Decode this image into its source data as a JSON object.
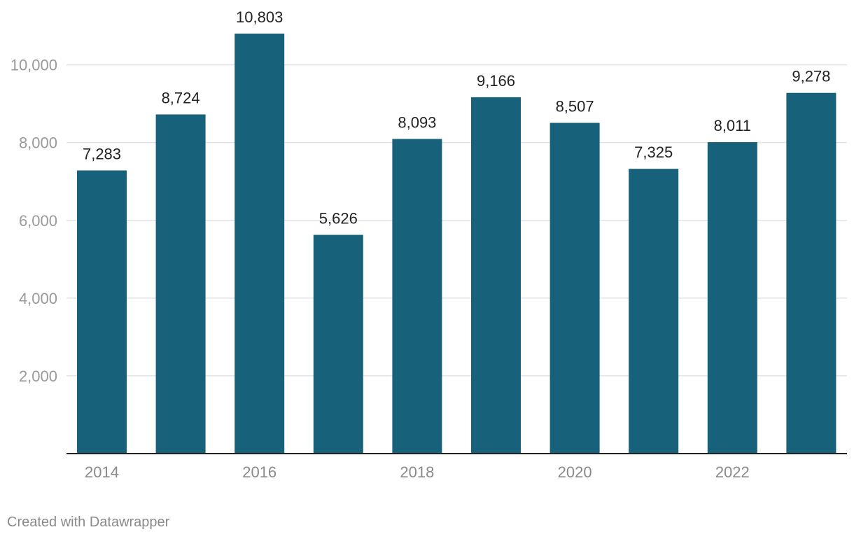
{
  "chart_data": {
    "type": "bar",
    "categories": [
      "2014",
      "2015",
      "2016",
      "2017",
      "2018",
      "2019",
      "2020",
      "2021",
      "2022",
      "2023"
    ],
    "values": [
      7283,
      8724,
      10803,
      5626,
      8093,
      9166,
      8507,
      7325,
      8011,
      9278
    ],
    "value_labels": [
      "7,283",
      "8,724",
      "10,803",
      "5,626",
      "8,093",
      "9,166",
      "8,507",
      "7,325",
      "8,011",
      "9,278"
    ],
    "x_tick_labels": [
      "2014",
      "",
      "2016",
      "",
      "2018",
      "",
      "2020",
      "",
      "2022",
      ""
    ],
    "y_ticks": [
      2000,
      4000,
      6000,
      8000,
      10000
    ],
    "y_tick_labels": [
      "2,000",
      "4,000",
      "6,000",
      "8,000",
      "10,000"
    ],
    "ylim": [
      0,
      10803
    ],
    "grid": true,
    "title": "",
    "xlabel": "",
    "ylabel": "",
    "bar_color": "#18617a",
    "grid_color": "#e3e3e3",
    "axis_color": "#222222",
    "tick_label_color": "#9a9a9a",
    "value_label_color": "#222222"
  },
  "footer": {
    "credit": "Created with Datawrapper"
  }
}
